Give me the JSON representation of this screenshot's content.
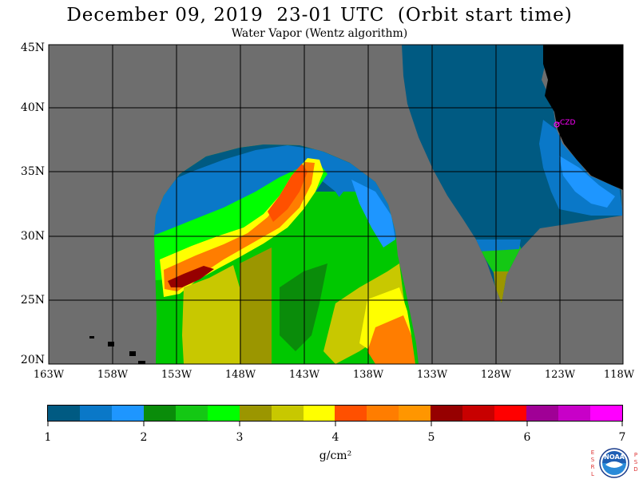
{
  "header": {
    "title": "December 09, 2019  23-01 UTC  (Orbit start time)",
    "subtitle": "Water Vapor (Wentz algorithm)"
  },
  "map": {
    "lat_labels": [
      "45N",
      "40N",
      "35N",
      "30N",
      "25N",
      "20N"
    ],
    "lon_labels": [
      "163W",
      "158W",
      "153W",
      "148W",
      "143W",
      "138W",
      "133W",
      "128W",
      "123W",
      "118W"
    ],
    "station_label": "CZD",
    "colors": {
      "no_data": "#6e6e6e",
      "land": "#000000",
      "grid": "#000000",
      "station": "#ff00ff"
    }
  },
  "colorbar": {
    "colors": [
      "#005a82",
      "#0a78c8",
      "#1e96ff",
      "#0a8c0a",
      "#14c814",
      "#00ff00",
      "#9b9600",
      "#c8c800",
      "#ffff00",
      "#ff5000",
      "#ff7d00",
      "#ff9600",
      "#960000",
      "#c80000",
      "#ff0000",
      "#a00096",
      "#c800c8",
      "#ff00ff"
    ],
    "tick_labels": [
      "1",
      "2",
      "3",
      "4",
      "5",
      "6",
      "7"
    ],
    "units": "g/cm²"
  },
  "logos": {
    "left_letters": [
      "E",
      "S",
      "R",
      "L"
    ],
    "right_letters": [
      "P",
      "S",
      "D"
    ],
    "badge": "NOAA"
  }
}
